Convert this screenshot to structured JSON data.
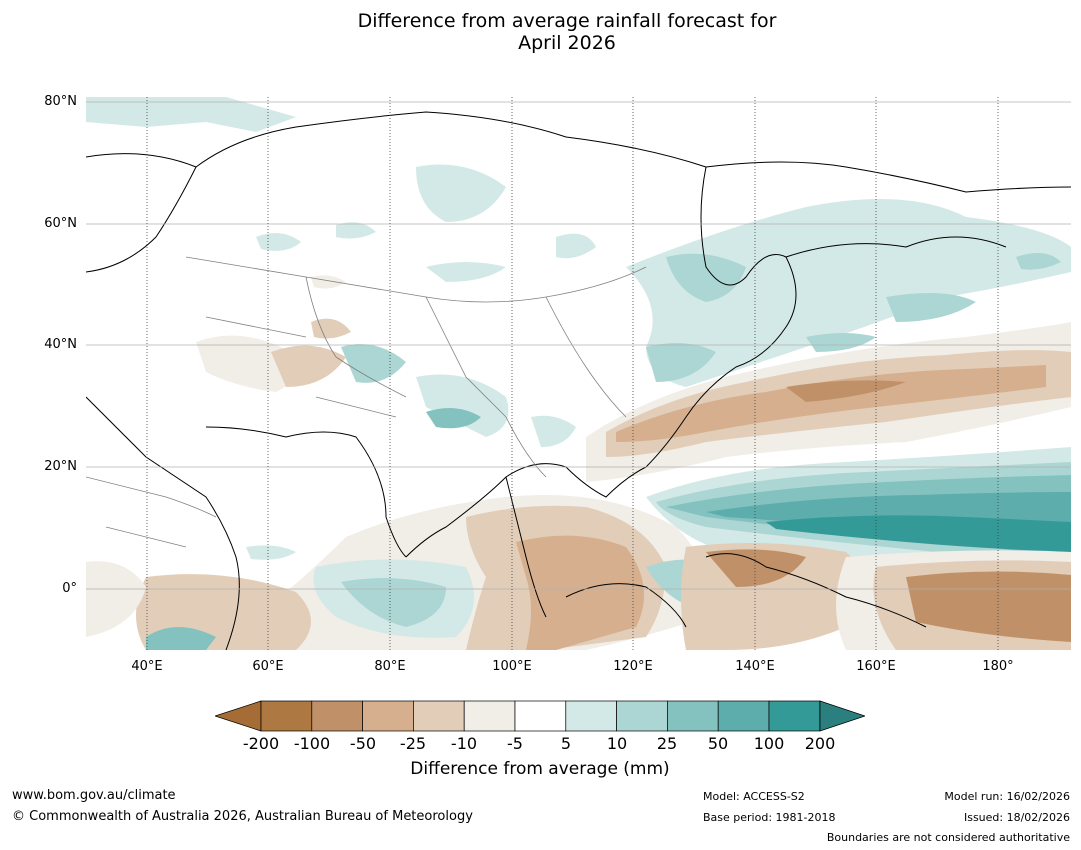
{
  "title": {
    "line1": "Difference from average rainfall forecast for",
    "line2": "April 2026"
  },
  "map": {
    "lat_labels": [
      "80°N",
      "60°N",
      "40°N",
      "20°N",
      "0°"
    ],
    "lon_labels": [
      "40°E",
      "60°E",
      "80°E",
      "100°E",
      "120°E",
      "140°E",
      "160°E",
      "180°"
    ],
    "extent": {
      "lon": [
        30,
        192
      ],
      "lat": [
        -10,
        81
      ]
    }
  },
  "colorbar": {
    "title": "Difference from average (mm)",
    "labels": [
      "-200",
      "-100",
      "-50",
      "-25",
      "-10",
      "-5",
      "5",
      "10",
      "25",
      "50",
      "100",
      "200"
    ],
    "colors": [
      "#a56d35",
      "#ad7842",
      "#c09168",
      "#d5af8e",
      "#e2cdb8",
      "#f1ede7",
      "#ffffff",
      "#d3e9e7",
      "#acd6d4",
      "#84c2c0",
      "#5cadac",
      "#349a98",
      "#2b7f7e"
    ]
  },
  "footer": {
    "website": "www.bom.gov.au/climate",
    "copyright": "© Commonwealth of Australia 2026, Australian Bureau of Meteorology",
    "model": "Model: ACCESS-S2",
    "base_period": "Base period: 1981-2018",
    "model_run": "Model run: 16/02/2026",
    "issued": "Issued: 18/02/2026",
    "disclaimer": "Boundaries are not considered authoritative"
  }
}
